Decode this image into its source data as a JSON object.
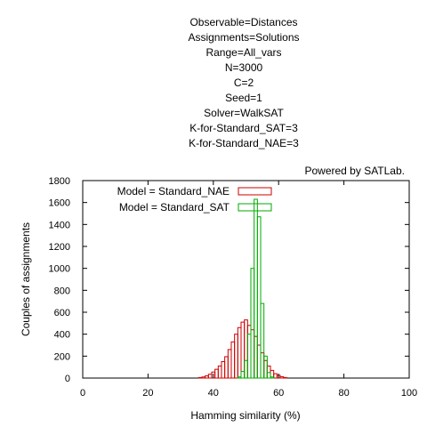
{
  "chart_data": {
    "type": "bar",
    "title_lines": [
      "Observable=Distances",
      "Assignments=Solutions",
      "Range=All_vars",
      "N=3000",
      "C=2",
      "Seed=1",
      "Solver=WalkSAT",
      "K-for-Standard_SAT=3",
      "K-for-Standard_NAE=3"
    ],
    "credit": "Powered by SATLab.",
    "xlabel": "Hamming similarity (%)",
    "ylabel": "Couples of assignments",
    "xlim": [
      0,
      100
    ],
    "ylim": [
      0,
      1800
    ],
    "xticks": [
      0,
      20,
      40,
      60,
      80,
      100
    ],
    "yticks": [
      0,
      200,
      400,
      600,
      800,
      1000,
      1200,
      1400,
      1600,
      1800
    ],
    "grid": false,
    "legend_position": "top-left",
    "bin_width": 1,
    "series": [
      {
        "name": "Model = Standard_NAE",
        "color": "#cc0000",
        "x": [
          36,
          37,
          38,
          39,
          40,
          41,
          42,
          43,
          44,
          45,
          46,
          47,
          48,
          49,
          50,
          51,
          52,
          53,
          54,
          55,
          56,
          57,
          58,
          59,
          60,
          61,
          62
        ],
        "values": [
          5,
          10,
          20,
          35,
          55,
          80,
          110,
          150,
          195,
          260,
          330,
          400,
          460,
          510,
          530,
          480,
          440,
          380,
          300,
          230,
          160,
          110,
          70,
          40,
          25,
          12,
          5
        ]
      },
      {
        "name": "Model = Standard_SAT",
        "color": "#00aa00",
        "x": [
          48,
          49,
          50,
          51,
          52,
          53,
          54,
          55,
          56,
          57,
          58
        ],
        "values": [
          10,
          60,
          160,
          400,
          1000,
          1630,
          1470,
          680,
          200,
          50,
          10
        ]
      }
    ]
  }
}
